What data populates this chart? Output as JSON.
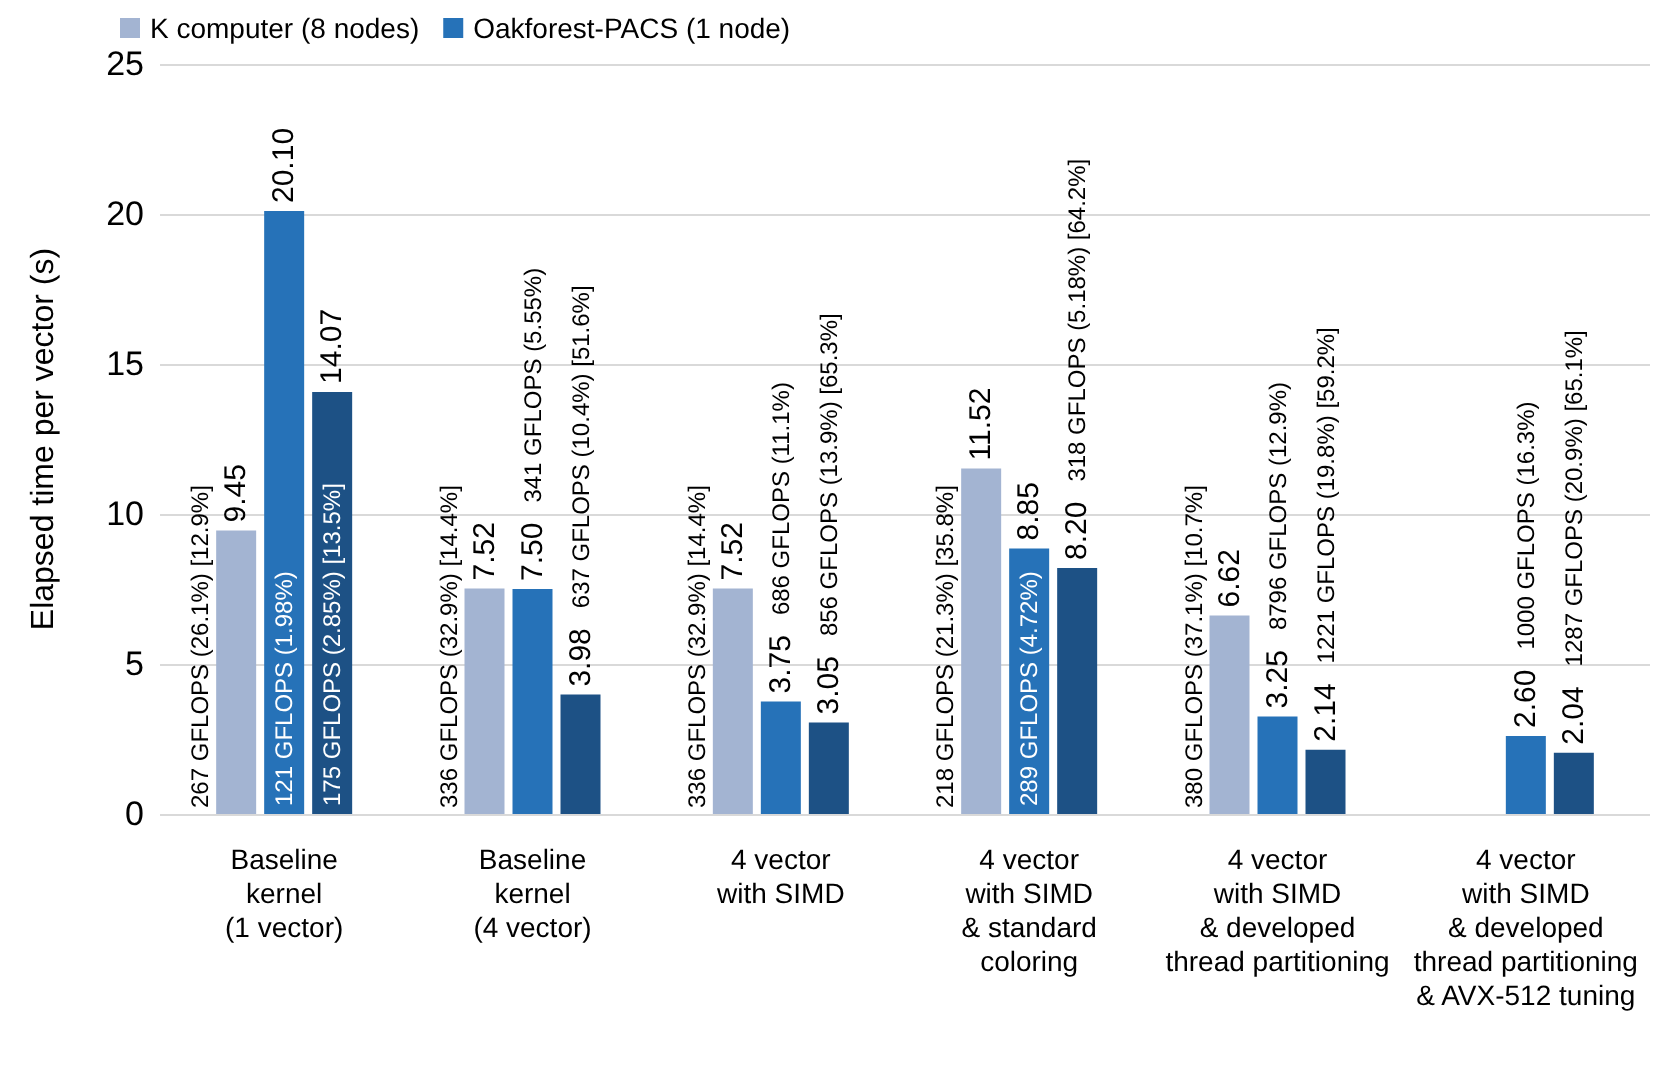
{
  "chart_data": {
    "type": "bar",
    "ylabel": "Elapsed time per vector (s)",
    "categories": [
      "Baseline\nkernel\n(1 vector)",
      "Baseline\nkernel\n(4 vector)",
      "4 vector\nwith SIMD",
      "4 vector\nwith SIMD\n& standard\ncoloring",
      "4 vector\nwith SIMD\n& developed\nthread partitioning",
      "4 vector\nwith SIMD\n& developed\nthread partitioning\n& AVX-512 tuning"
    ],
    "series": [
      {
        "name": "K computer (8 nodes)",
        "color": "#a3b4d2",
        "values": [
          9.45,
          7.52,
          7.52,
          11.52,
          6.62,
          null
        ],
        "value_labels": [
          "9.45",
          "7.52",
          "7.52",
          "11.52",
          "6.62",
          null
        ]
      },
      {
        "name": "Oakforest-PACS (1 node)",
        "color": "#2672b8",
        "values": [
          20.1,
          7.5,
          3.75,
          8.85,
          3.25,
          2.6
        ],
        "value_labels": [
          "20.10",
          "7.50",
          "3.75",
          "8.85",
          "3.25",
          "2.60"
        ]
      },
      {
        "color": "#1d5185",
        "values": [
          14.07,
          3.98,
          3.05,
          8.2,
          2.14,
          2.04
        ],
        "value_labels": [
          "14.07",
          "3.98",
          "3.05",
          "8.20",
          "2.14",
          "2.04"
        ]
      }
    ],
    "annotations": [
      "267 GFLOPS (26.1%) [12.9%]",
      "336 GFLOPS (32.9%) [14.4%]",
      "336 GFLOPS (32.9%) [14.4%]",
      "218 GFLOPS (21.3%) [35.8%]",
      "380 GFLOPS (37.1%) [10.7%]",
      "121 GFLOPS (1.98%)",
      "341 GFLOPS (5.55%)",
      "686 GFLOPS (11.1%)",
      "289 GFLOPS (4.72%)",
      "8796 GFLOPS (12.9%)",
      "1000 GFLOPS (16.3%)",
      "175 GFLOPS (2.85%) [13.5%]",
      "637 GFLOPS (10.4%) [51.6%]",
      "856 GFLOPS (13.9%) [65.3%]",
      "318 GFLOPS (5.18%) [64.2%]",
      "1221 GFLOPS (19.8%) [59.2%]",
      "1287 GFLOPS (20.9%) [65.1%]"
    ],
    "ylim": [
      0,
      25
    ],
    "yticks": [
      0,
      5,
      10,
      15,
      20,
      25
    ],
    "grid": "y",
    "legend": "top left"
  }
}
